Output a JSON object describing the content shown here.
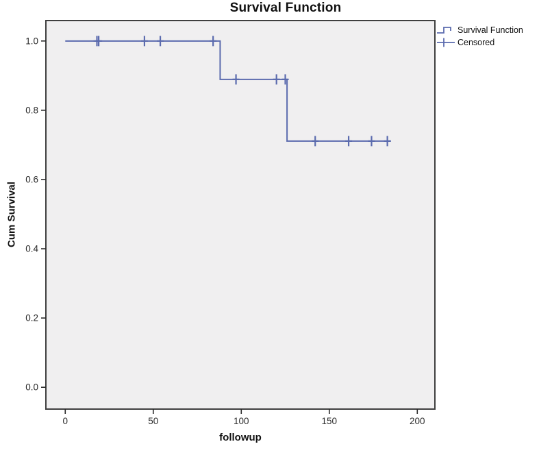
{
  "page_title": "Survival Function",
  "colors": {
    "line": "#5b6bae",
    "plot_bg": "#f0eff0",
    "frame": "#3f3f3f",
    "tick": "#2a2a2a",
    "text": "#111111"
  },
  "chart_data": {
    "type": "line",
    "subtype": "kaplan-meier-step",
    "title": "Survival Function",
    "xlabel": "followup",
    "ylabel": "Cum Survival",
    "xlim": [
      -11,
      210
    ],
    "ylim": [
      -0.063,
      1.059
    ],
    "x_ticks": [
      0,
      50,
      100,
      150,
      200
    ],
    "y_ticks": [
      0.0,
      0.2,
      0.4,
      0.6,
      0.8,
      1.0
    ],
    "grid": false,
    "legend_position": "outside-top-right",
    "series": [
      {
        "name": "Survival Function",
        "style": "step",
        "color": "#5b6bae",
        "points": [
          [
            0,
            1.0
          ],
          [
            88,
            1.0
          ],
          [
            88,
            0.889
          ],
          [
            126,
            0.889
          ],
          [
            126,
            0.711
          ],
          [
            185,
            0.711
          ]
        ]
      },
      {
        "name": "Censored",
        "style": "plus-marker",
        "color": "#5b6bae",
        "points": [
          [
            18,
            1.0
          ],
          [
            19,
            1.0
          ],
          [
            45,
            1.0
          ],
          [
            54,
            1.0
          ],
          [
            84,
            1.0
          ],
          [
            97,
            0.889
          ],
          [
            120,
            0.889
          ],
          [
            125,
            0.889
          ],
          [
            142,
            0.711
          ],
          [
            161,
            0.711
          ],
          [
            174,
            0.711
          ],
          [
            183,
            0.711
          ]
        ]
      }
    ],
    "legend": [
      {
        "label": "Survival Function",
        "symbol": "step-line"
      },
      {
        "label": "Censored",
        "symbol": "plus"
      }
    ]
  }
}
